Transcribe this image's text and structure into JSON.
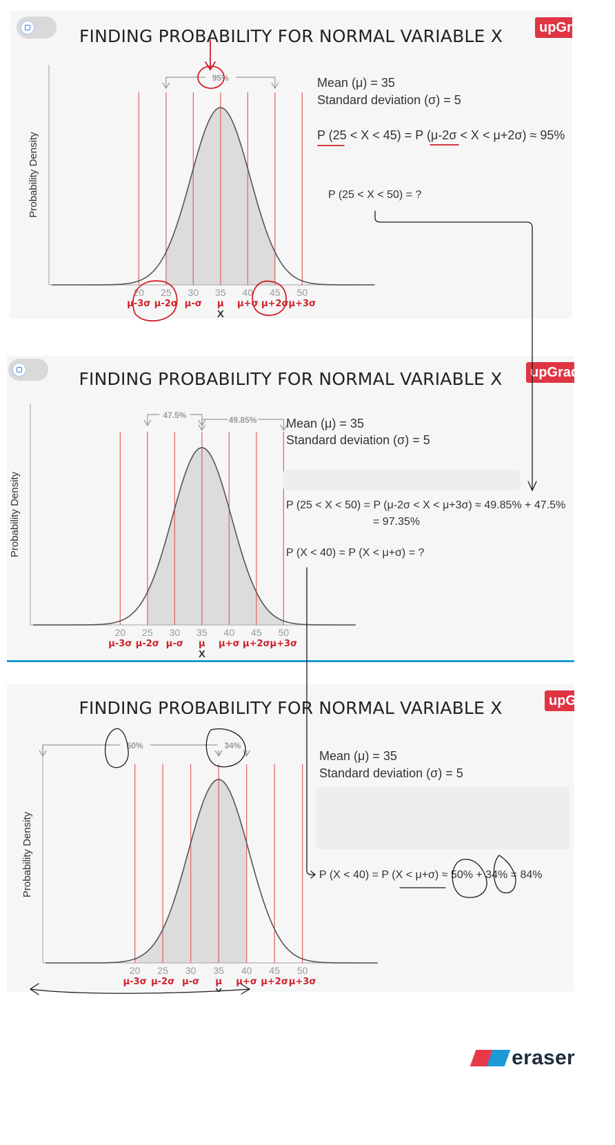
{
  "brand": "upGrad",
  "title": "FINDING PROBABILITY FOR NORMAL VARIABLE X",
  "y_label": "Probability Density",
  "x_label": "X",
  "ticks": [
    "20",
    "25",
    "30",
    "35",
    "40",
    "45",
    "50"
  ],
  "sigma_labels": [
    "μ-3σ",
    "μ-2σ",
    "μ-σ",
    "μ",
    "μ+σ",
    "μ+2σ",
    "μ+3σ"
  ],
  "mean_text": "Mean (μ) = 35",
  "sd_text": "Standard deviation (σ) = 5",
  "panel1": {
    "bracket_label": "95%",
    "eq1": "P (25 < X < 45) = P (μ-2σ < X < μ+2σ) ≈ 95%",
    "question": "P (25 < X < 50) =  ?"
  },
  "panel2": {
    "bracket_left_label": "47.5%",
    "bracket_right_label": "49.85%",
    "eq1": "P (25 < X < 50) = P (μ-2σ < X < μ+3σ) ≈ 49.85% + 47.5%",
    "eq1_result": "= 97.35%",
    "question": "P (X < 40) = P (X < μ+σ) = ?"
  },
  "panel3": {
    "bracket_left_label": "50%",
    "bracket_right_label": "34%",
    "eq1": "P (X < 40) = P (X < μ+σ) ≈ 50% + 34% = 84%"
  },
  "eraser_logo": "eraser",
  "colors": {
    "accent_red": "#e03443",
    "annotation_red": "#d0202a",
    "curve_fill": "#dcdcdc",
    "divider_blue": "#1c9ad6"
  }
}
